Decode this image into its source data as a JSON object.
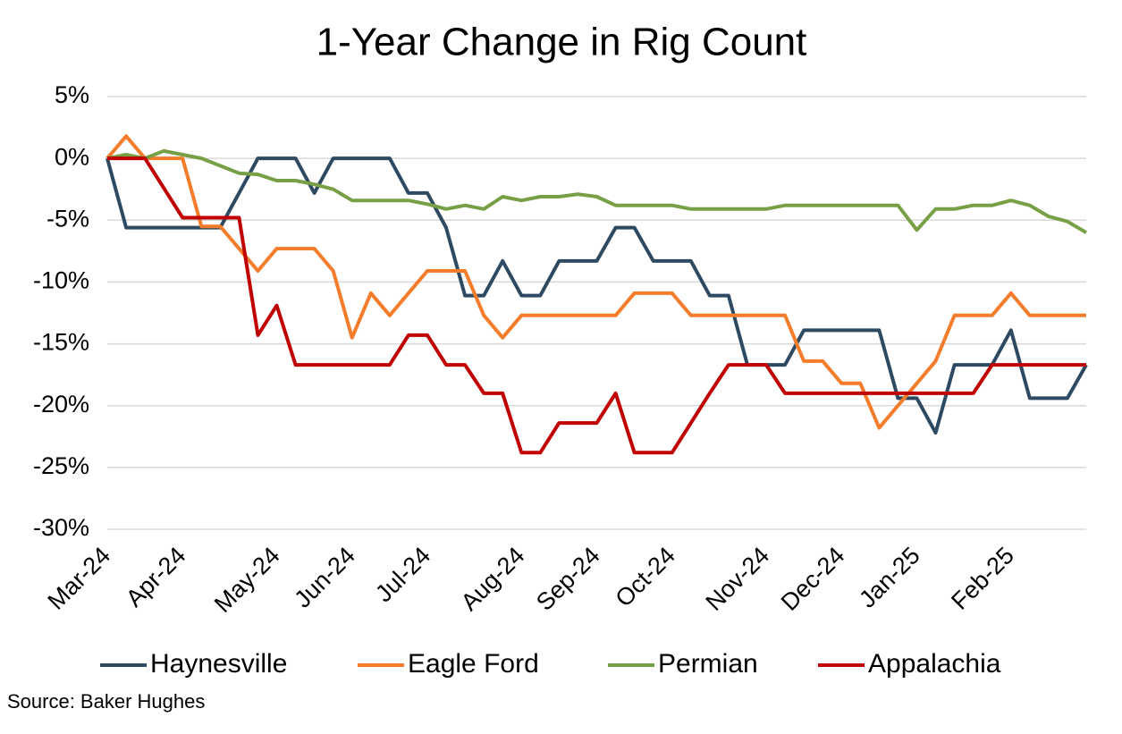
{
  "chart_data": {
    "type": "line",
    "title": "1-Year Change in Rig Count",
    "source": "Source: Baker Hughes",
    "categories": [
      "Mar-24",
      null,
      null,
      null,
      "Apr-24",
      null,
      null,
      null,
      null,
      "May-24",
      null,
      null,
      null,
      "Jun-24",
      null,
      null,
      null,
      "Jul-24",
      null,
      null,
      null,
      null,
      "Aug-24",
      null,
      null,
      null,
      "Sep-24",
      null,
      null,
      null,
      "Oct-24",
      null,
      null,
      null,
      null,
      "Nov-24",
      null,
      null,
      null,
      "Dec-24",
      null,
      null,
      null,
      "Jan-25",
      null,
      null,
      null,
      null,
      "Feb-25",
      null,
      null,
      null,
      null
    ],
    "series": [
      {
        "name": "Haynesville",
        "color": "#2e4a62",
        "values": [
          0,
          -5.6,
          -5.6,
          -5.6,
          -5.6,
          -5.6,
          -5.6,
          -2.8,
          0,
          0,
          0,
          -2.8,
          0,
          0,
          0,
          0,
          -2.8,
          -2.8,
          -5.6,
          -11.1,
          -11.1,
          -8.3,
          -11.1,
          -11.1,
          -8.3,
          -8.3,
          -8.3,
          -5.6,
          -5.6,
          -8.3,
          -8.3,
          -8.3,
          -11.1,
          -11.1,
          -16.7,
          -16.7,
          -16.7,
          -13.9,
          -13.9,
          -13.9,
          -13.9,
          -13.9,
          -19.4,
          -19.4,
          -22.2,
          -16.7,
          -16.7,
          -16.7,
          -13.9,
          -19.4,
          -19.4,
          -19.4,
          -16.7
        ]
      },
      {
        "name": "Eagle Ford",
        "color": "#f47c2a",
        "values": [
          0,
          1.8,
          0,
          0,
          0,
          -5.5,
          -5.5,
          -7.3,
          -9.1,
          -7.3,
          -7.3,
          -7.3,
          -9.1,
          -14.5,
          -10.9,
          -12.7,
          -10.9,
          -9.1,
          -9.1,
          -9.1,
          -12.7,
          -14.5,
          -12.7,
          -12.7,
          -12.7,
          -12.7,
          -12.7,
          -12.7,
          -10.9,
          -10.9,
          -10.9,
          -12.7,
          -12.7,
          -12.7,
          -12.7,
          -12.7,
          -12.7,
          -16.4,
          -16.4,
          -18.2,
          -18.2,
          -21.8,
          -20,
          -18.2,
          -16.4,
          -12.7,
          -12.7,
          -12.7,
          -10.9,
          -12.7,
          -12.7,
          -12.7,
          -12.7
        ]
      },
      {
        "name": "Permian",
        "color": "#77a046",
        "values": [
          0,
          0.3,
          0,
          0.6,
          0.3,
          0,
          -0.6,
          -1.2,
          -1.3,
          -1.8,
          -1.8,
          -2.1,
          -2.5,
          -3.4,
          -3.4,
          -3.4,
          -3.4,
          -3.7,
          -4.1,
          -3.8,
          -4.1,
          -3.1,
          -3.4,
          -3.1,
          -3.1,
          -2.9,
          -3.1,
          -3.8,
          -3.8,
          -3.8,
          -3.8,
          -4.1,
          -4.1,
          -4.1,
          -4.1,
          -4.1,
          -3.8,
          -3.8,
          -3.8,
          -3.8,
          -3.8,
          -3.8,
          -3.8,
          -5.8,
          -4.1,
          -4.1,
          -3.8,
          -3.8,
          -3.4,
          -3.8,
          -4.7,
          -5.1,
          -6.0
        ]
      },
      {
        "name": "Appalachia",
        "color": "#c00000",
        "values": [
          0,
          0,
          0,
          -2.4,
          -4.8,
          -4.8,
          -4.8,
          -4.8,
          -14.3,
          -11.9,
          -16.7,
          -16.7,
          -16.7,
          -16.7,
          -16.7,
          -16.7,
          -14.3,
          -14.3,
          -16.7,
          -16.7,
          -19,
          -19,
          -23.8,
          -23.8,
          -21.4,
          -21.4,
          -21.4,
          -19,
          -23.8,
          -23.8,
          -23.8,
          -21.4,
          -19,
          -16.7,
          -16.7,
          -16.7,
          -19,
          -19,
          -19,
          -19,
          -19,
          -19,
          -19,
          -19,
          -19,
          -19,
          -19,
          -16.7,
          -16.7,
          -16.7,
          -16.7,
          -16.7,
          -16.7
        ]
      }
    ],
    "ylim": [
      -30,
      5
    ],
    "yticks": [
      {
        "value": 5,
        "label": "5%"
      },
      {
        "value": 0,
        "label": "0%"
      },
      {
        "value": -5,
        "label": "-5%"
      },
      {
        "value": -10,
        "label": "-10%"
      },
      {
        "value": -15,
        "label": "-15%"
      },
      {
        "value": -20,
        "label": "-20%"
      },
      {
        "value": -25,
        "label": "-25%"
      },
      {
        "value": -30,
        "label": "-30%"
      }
    ],
    "grid": true,
    "legend": "bottom"
  }
}
